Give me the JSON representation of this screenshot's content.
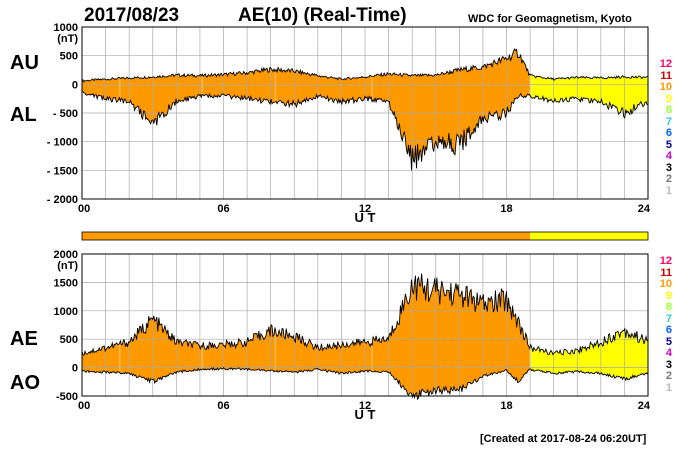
{
  "header": {
    "date": "2017/08/23",
    "title": "AE(10) (Real-Time)",
    "source": "WDC for Geomagnetism, Kyoto"
  },
  "side_labels": {
    "au": "AU",
    "al": "AL",
    "ae": "AE",
    "ao": "AO"
  },
  "footer": {
    "created": "[Created at 2017-08-24 06:20UT]"
  },
  "colors": {
    "orange": "#ff9900",
    "yellow": "#ffff00",
    "grid": "#aaaaaa",
    "line": "#000000"
  },
  "legend": [
    {
      "label": "12",
      "color": "#ff0066"
    },
    {
      "label": "11",
      "color": "#cc0000"
    },
    {
      "label": "10",
      "color": "#ff9900"
    },
    {
      "label": "9",
      "color": "#ffff00"
    },
    {
      "label": "8",
      "color": "#99ff33"
    },
    {
      "label": "7",
      "color": "#33cccc"
    },
    {
      "label": "6",
      "color": "#0066ff"
    },
    {
      "label": "5",
      "color": "#000099"
    },
    {
      "label": "4",
      "color": "#cc00cc"
    },
    {
      "label": "3",
      "color": "#000000"
    },
    {
      "label": "2",
      "color": "#777777"
    },
    {
      "label": "1",
      "color": "#bbbbbb"
    }
  ],
  "chart_data": [
    {
      "type": "area",
      "name": "AU/AL",
      "xlabel": "U T",
      "ylabel_unit": "(nT)",
      "xlim": [
        0,
        24
      ],
      "ylim": [
        -2000,
        1000
      ],
      "x_ticks": [
        "00",
        "06",
        "12",
        "18",
        "24"
      ],
      "y_ticks": [
        "1000",
        "500",
        "0",
        "- 500",
        "- 1000",
        "- 1500",
        "- 2000"
      ],
      "grid": true,
      "station_count_change_ut": 19,
      "series": [
        {
          "name": "AU",
          "x": [
            0,
            1,
            2,
            3,
            4,
            5,
            6,
            7,
            8,
            9,
            10,
            11,
            12,
            13,
            14,
            15,
            16,
            17,
            18,
            18.5,
            19,
            20,
            21,
            22,
            23,
            24
          ],
          "values": [
            60,
            90,
            110,
            130,
            160,
            150,
            170,
            200,
            260,
            230,
            150,
            90,
            130,
            180,
            150,
            160,
            250,
            300,
            450,
            560,
            150,
            90,
            120,
            110,
            130,
            120
          ]
        },
        {
          "name": "AL",
          "x": [
            0,
            1,
            2,
            3,
            4,
            5,
            6,
            7,
            8,
            9,
            10,
            11,
            12,
            13,
            14,
            15,
            16,
            17,
            18,
            18.5,
            19,
            20,
            21,
            22,
            23,
            24
          ],
          "values": [
            -150,
            -250,
            -300,
            -680,
            -300,
            -200,
            -200,
            -250,
            -300,
            -350,
            -200,
            -300,
            -250,
            -300,
            -1300,
            -1000,
            -1050,
            -600,
            -500,
            -200,
            -200,
            -300,
            -250,
            -300,
            -500,
            -300
          ]
        }
      ]
    },
    {
      "type": "area",
      "name": "AE/AO",
      "xlabel": "U T",
      "ylabel_unit": "(nT)",
      "xlim": [
        0,
        24
      ],
      "ylim": [
        -500,
        2000
      ],
      "x_ticks": [
        "00",
        "06",
        "12",
        "18",
        "24"
      ],
      "y_ticks": [
        "2000",
        "1500",
        "1000",
        "500",
        "0",
        "-500"
      ],
      "grid": true,
      "station_count_change_ut": 19,
      "series": [
        {
          "name": "AE",
          "x": [
            0,
            1,
            2,
            3,
            4,
            5,
            6,
            7,
            8,
            9,
            10,
            11,
            12,
            13,
            14,
            15,
            16,
            17,
            18,
            18.5,
            19,
            20,
            21,
            22,
            23,
            24
          ],
          "values": [
            250,
            350,
            450,
            850,
            450,
            380,
            400,
            450,
            650,
            550,
            350,
            400,
            450,
            500,
            1450,
            1350,
            1300,
            1100,
            1200,
            800,
            350,
            250,
            300,
            450,
            650,
            450
          ]
        },
        {
          "name": "AO",
          "x": [
            0,
            1,
            2,
            3,
            4,
            5,
            6,
            7,
            8,
            9,
            10,
            11,
            12,
            13,
            14,
            15,
            16,
            17,
            18,
            18.5,
            19,
            20,
            21,
            22,
            23,
            24
          ],
          "values": [
            -60,
            -80,
            -100,
            -250,
            -80,
            -30,
            -20,
            -30,
            -50,
            -80,
            -30,
            -100,
            -60,
            -70,
            -500,
            -400,
            -400,
            -150,
            -50,
            -250,
            -30,
            -100,
            -70,
            -100,
            -200,
            -100
          ]
        }
      ]
    }
  ]
}
